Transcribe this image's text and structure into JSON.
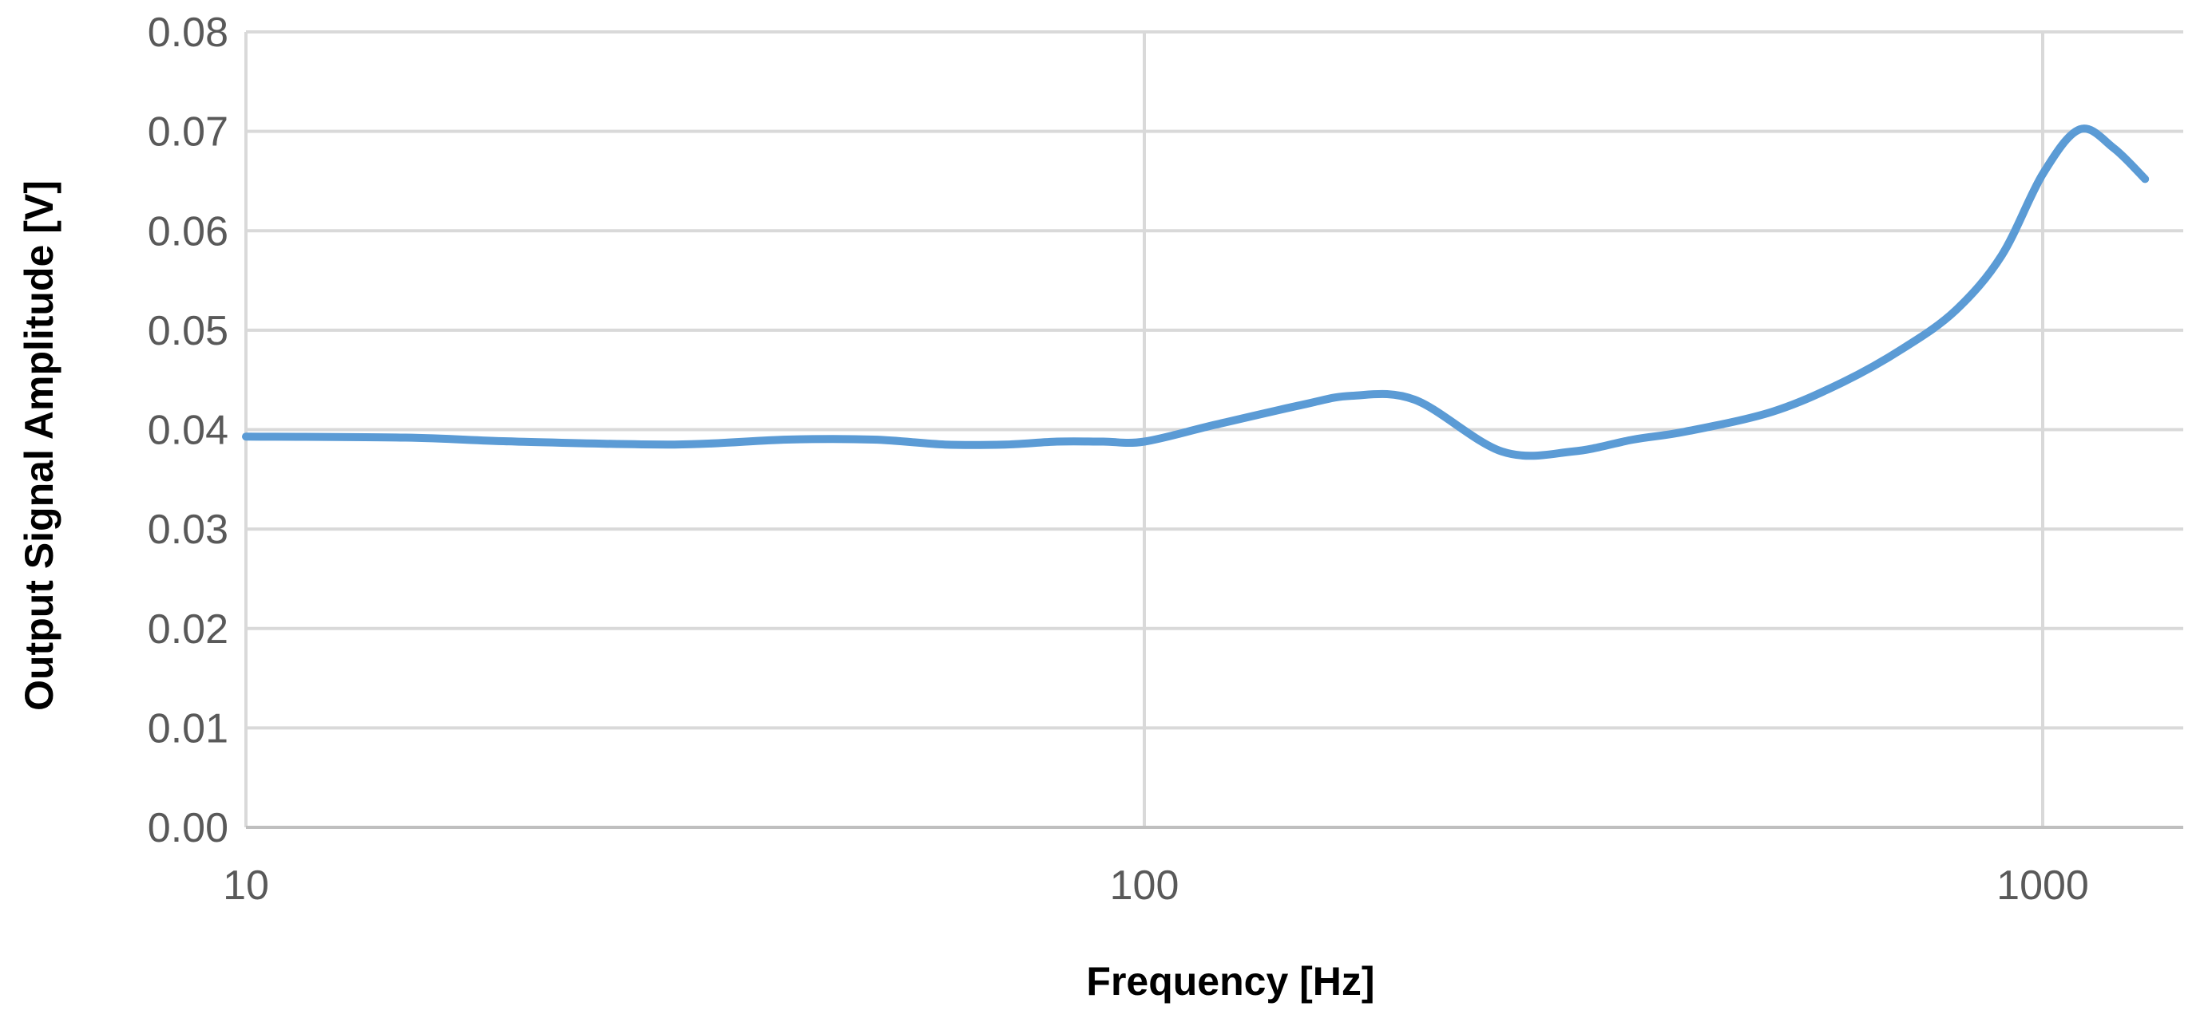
{
  "chart_data": {
    "type": "line",
    "title": "",
    "xlabel": "Frequency [Hz]",
    "ylabel": "Output Signal Amplitude [V]",
    "x_scale": "log",
    "xlim": [
      10,
      1400
    ],
    "ylim": [
      0,
      0.08
    ],
    "x_ticks": [
      {
        "value": 10,
        "label": "10"
      },
      {
        "value": 100,
        "label": "100"
      },
      {
        "value": 1000,
        "label": "1000"
      }
    ],
    "y_ticks": [
      {
        "value": 0.0,
        "label": "0.00"
      },
      {
        "value": 0.01,
        "label": "0.01"
      },
      {
        "value": 0.02,
        "label": "0.02"
      },
      {
        "value": 0.03,
        "label": "0.03"
      },
      {
        "value": 0.04,
        "label": "0.04"
      },
      {
        "value": 0.05,
        "label": "0.05"
      },
      {
        "value": 0.06,
        "label": "0.06"
      },
      {
        "value": 0.07,
        "label": "0.07"
      },
      {
        "value": 0.08,
        "label": "0.08"
      }
    ],
    "grid": true,
    "legend": "none",
    "series": [
      {
        "color": "#5b9bd5",
        "x": [
          10,
          15,
          20,
          30,
          40,
          50,
          60,
          70,
          80,
          90,
          100,
          120,
          150,
          170,
          200,
          250,
          300,
          350,
          400,
          500,
          600,
          700,
          800,
          900,
          1000,
          1100,
          1200,
          1300
        ],
        "y": [
          0.0393,
          0.0392,
          0.0388,
          0.0385,
          0.039,
          0.039,
          0.0385,
          0.0385,
          0.0388,
          0.0388,
          0.0388,
          0.0405,
          0.0425,
          0.0434,
          0.043,
          0.0378,
          0.0378,
          0.039,
          0.0398,
          0.0418,
          0.0448,
          0.0482,
          0.052,
          0.0575,
          0.0657,
          0.0702,
          0.0683,
          0.0652
        ]
      }
    ]
  }
}
